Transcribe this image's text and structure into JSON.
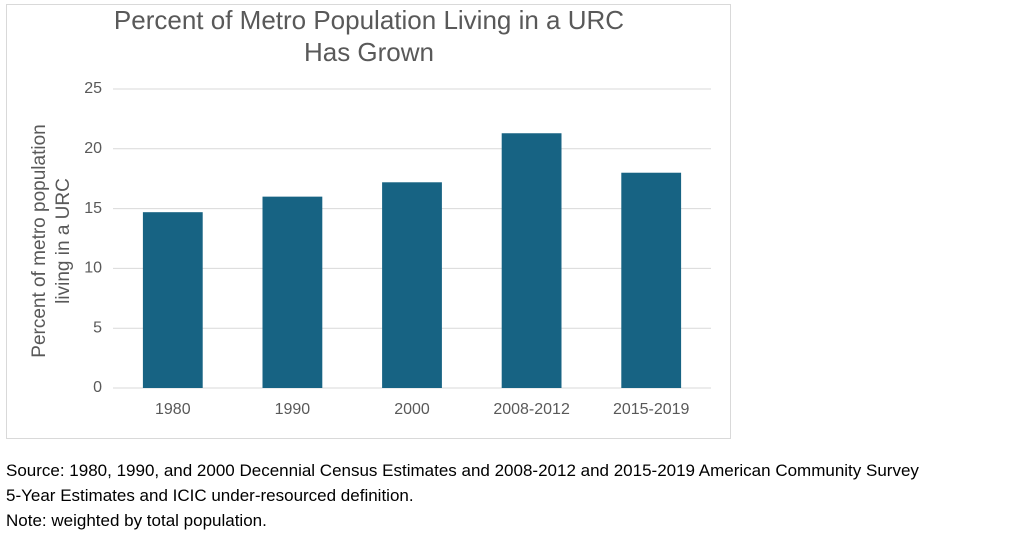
{
  "chart_data": {
    "type": "bar",
    "title": [
      "Percent of Metro Population Living in a URC",
      "Has Grown"
    ],
    "y_label": [
      "Percent of metro population",
      "living in a URC"
    ],
    "categories": [
      "1980",
      "1990",
      "2000",
      "2008-2012",
      "2015-2019"
    ],
    "values": [
      14.7,
      16.0,
      17.2,
      21.3,
      18.0
    ],
    "color": "#176383",
    "ylim": [
      0,
      25
    ],
    "yticks": [
      0,
      5,
      10,
      15,
      20,
      25
    ],
    "grid": true
  },
  "notes": [
    "Source: 1980, 1990, and 2000 Decennial Census Estimates and 2008-2012 and 2015-2019 American Community Survey 5-Year Estimates and ICIC under-resourced definition.",
    "Note: weighted by total population."
  ]
}
